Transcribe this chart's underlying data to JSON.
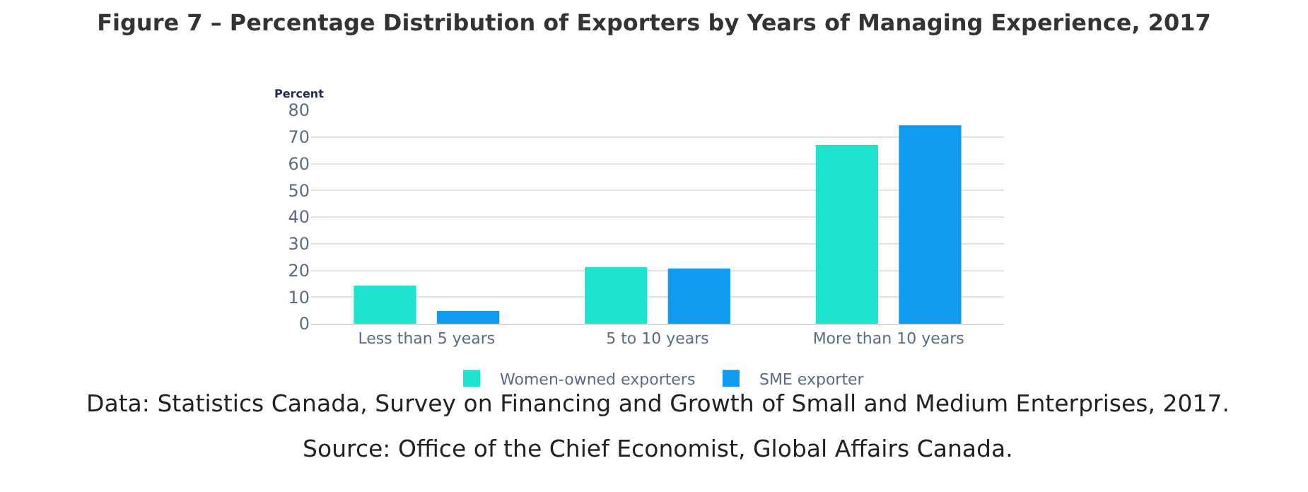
{
  "chart_data": {
    "type": "bar",
    "title": "Figure 7 – Percentage Distribution of Exporters by Years of Managing Experience, 2017",
    "ylabel": "Percent",
    "categories": [
      "Less than 5 years",
      "5 to 10 years",
      "More than 10 years"
    ],
    "series": [
      {
        "name": "Women-owned exporters",
        "color": "#1de3cf",
        "values": [
          14.3,
          21.2,
          67.0
        ]
      },
      {
        "name": "SME exporter",
        "color": "#0f9bef",
        "values": [
          4.8,
          20.7,
          74.4
        ]
      }
    ],
    "ylim": [
      0,
      80
    ],
    "yticks": [
      0,
      10,
      20,
      30,
      40,
      50,
      60,
      70,
      80
    ],
    "grid": "y",
    "legend": "bottom",
    "annotations": [
      "Data: Statistics Canada, Survey on Financing and Growth of Small and Medium Enterprises, 2017.",
      "Source: Office of the Chief Economist, Global Affairs Canada."
    ]
  }
}
